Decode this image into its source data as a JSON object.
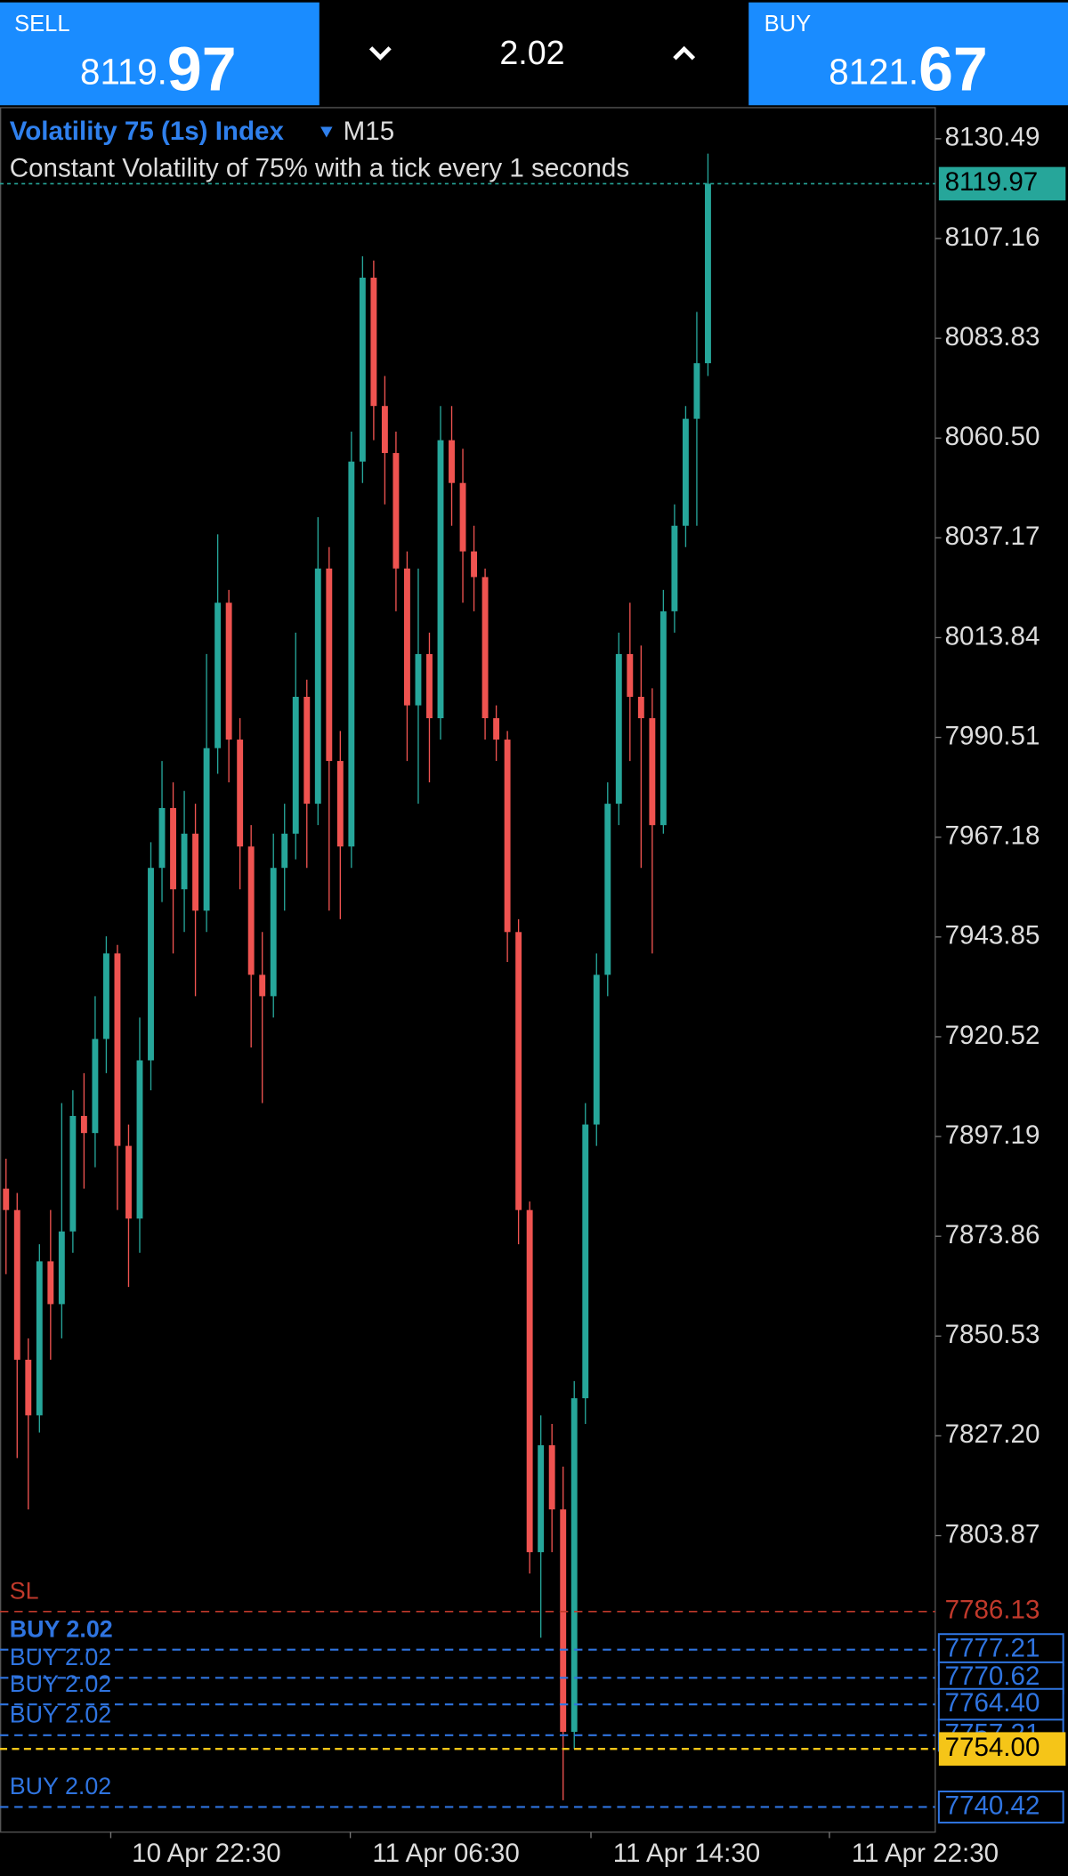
{
  "header": {
    "sell_label": "SELL",
    "sell_price_int": "8119.",
    "sell_price_frac": "97",
    "volume": "2.02",
    "buy_label": "BUY",
    "buy_price_int": "8121.",
    "buy_price_frac": "67"
  },
  "chart_data": {
    "type": "candlestick",
    "title": "Volatility 75 (1s) Index",
    "timeframe": "M15",
    "subtitle": "Constant Volatility of 75% with a tick every 1 seconds",
    "up_color": "#26a69a",
    "down_color": "#ef5350",
    "open": [
      7885,
      7880,
      7845,
      7832,
      7868,
      7858,
      7875,
      7902,
      7898,
      7920,
      7940,
      7895,
      7878,
      7915,
      7960,
      7974,
      7955,
      7968,
      7950,
      7988,
      8022,
      7990,
      7965,
      7935,
      7930,
      7960,
      7968,
      8000,
      7975,
      8030,
      7985,
      7965,
      8055,
      8098,
      8068,
      8057,
      8030,
      7998,
      8010,
      7995,
      8060,
      8050,
      8034,
      8028,
      7995,
      7990,
      7945,
      7880,
      7800,
      7825,
      7810,
      7758,
      7836,
      7900,
      7935,
      7975,
      8010,
      8000,
      7995,
      7970,
      8020,
      8040,
      8065,
      8078
    ],
    "high": [
      7892,
      7884,
      7850,
      7872,
      7880,
      7905,
      7908,
      7912,
      7930,
      7944,
      7942,
      7900,
      7925,
      7966,
      7985,
      7980,
      7978,
      7975,
      8010,
      8038,
      8025,
      7995,
      7970,
      7945,
      7968,
      7975,
      8015,
      8004,
      8042,
      8035,
      7992,
      8062,
      8103,
      8102,
      8075,
      8062,
      8034,
      8030,
      8015,
      8068,
      8068,
      8058,
      8040,
      8030,
      7998,
      7992,
      7948,
      7882,
      7832,
      7830,
      7820,
      7840,
      7905,
      7940,
      7980,
      8015,
      8022,
      8012,
      8002,
      8025,
      8045,
      8068,
      8090,
      8127
    ],
    "low": [
      7865,
      7822,
      7810,
      7828,
      7845,
      7850,
      7870,
      7885,
      7890,
      7912,
      7880,
      7862,
      7870,
      7908,
      7952,
      7940,
      7945,
      7930,
      7945,
      7982,
      7980,
      7955,
      7918,
      7905,
      7925,
      7950,
      7962,
      7960,
      7970,
      7950,
      7948,
      7960,
      8050,
      8060,
      8045,
      8020,
      7985,
      7975,
      7980,
      7990,
      8040,
      8022,
      8020,
      7990,
      7985,
      7938,
      7872,
      7795,
      7780,
      7800,
      7742,
      7754,
      7830,
      7895,
      7930,
      7970,
      7985,
      7960,
      7940,
      7968,
      8015,
      8035,
      8040,
      8075
    ],
    "close": [
      7880,
      7845,
      7832,
      7868,
      7858,
      7875,
      7902,
      7898,
      7920,
      7940,
      7895,
      7878,
      7915,
      7960,
      7974,
      7955,
      7968,
      7950,
      7988,
      8022,
      7990,
      7965,
      7935,
      7930,
      7960,
      7968,
      8000,
      7975,
      8030,
      7985,
      7965,
      8055,
      8098,
      8068,
      8057,
      8030,
      7998,
      8010,
      7995,
      8060,
      8050,
      8034,
      8028,
      7995,
      7990,
      7945,
      7880,
      7800,
      7825,
      7810,
      7758,
      7836,
      7900,
      7935,
      7975,
      8010,
      8000,
      7995,
      7970,
      8020,
      8040,
      8065,
      8078,
      8119.97
    ],
    "xlim": [
      -0.54,
      83.4
    ],
    "xticks": [
      {
        "value": 9.4,
        "label": "10 Apr 22:30"
      },
      {
        "value": 30.9,
        "label": "11 Apr 06:30"
      },
      {
        "value": 52.5,
        "label": "11 Apr 14:30"
      },
      {
        "value": 73.9,
        "label": "11 Apr 22:30"
      }
    ],
    "ylim": [
      7734.55,
      8137.76
    ],
    "yticks": [
      8130.49,
      8107.16,
      8083.83,
      {
        "value": 8060.5,
        "label": "8060.50"
      },
      8037.17,
      8013.84,
      7990.51,
      7967.18,
      7943.85,
      7920.52,
      7897.19,
      7873.86,
      7850.53,
      {
        "value": 7827.2,
        "label": "7827.20"
      },
      7803.87
    ],
    "last_price": {
      "value": 8119.97,
      "color": "#26a69a"
    },
    "levels": [
      {
        "name": "SL",
        "value": 7786.13,
        "color": "#c0392b"
      },
      {
        "name": "BUY 2.02",
        "value": 7777.21,
        "color": "#2f74e0"
      },
      {
        "name": "BUY 2.02",
        "value": 7770.62,
        "color": "#2f74e0"
      },
      {
        "name": "BUY 2.02",
        "value": 7764.4,
        "value_label": "7764.40",
        "color": "#2f74e0"
      },
      {
        "name": "BUY 2.02",
        "value": 7757.21,
        "color": "#2f74e0"
      },
      {
        "name": "BUY 2.02",
        "value": 7740.42,
        "color": "#2f74e0"
      }
    ],
    "ask_line": {
      "value": 7754,
      "value_label": "7754.00",
      "color": "#f5c518"
    }
  }
}
